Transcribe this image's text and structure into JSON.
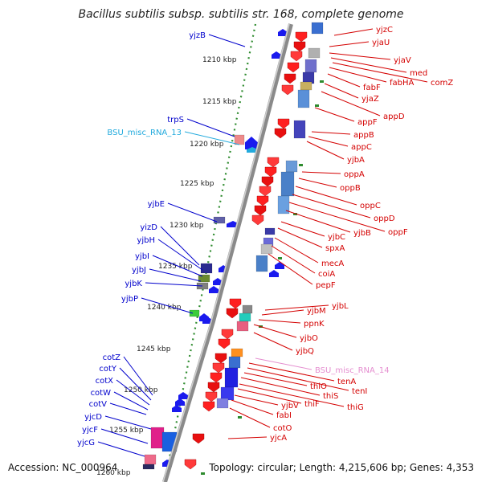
{
  "title": "Bacillus subtilis subsp. subtilis str. 168, complete genome",
  "footer": {
    "accession": "Accession: NC_000964",
    "topology": "Topology: circular; Length: 4,215,606 bp; Genes: 4,353"
  },
  "colors": {
    "backbone": "#8a8a8a",
    "ruler_dots": "#2e8b2e",
    "reverse_label": "#0000cc",
    "forward_label": "#d40000",
    "misc_rna_reverse": "#22aadd",
    "misc_rna_forward": "#e58fd0"
  },
  "ruler_ticks": [
    "1210 kbp",
    "1215 kbp",
    "1220 kbp",
    "1225 kbp",
    "1230 kbp",
    "1235 kbp",
    "1240 kbp",
    "1245 kbp",
    "1250 kbp",
    "1255 kbp",
    "1260 kbp"
  ],
  "reverse_strand_labels": [
    "yjzB",
    "trpS",
    "BSU_misc_RNA_13",
    "yjbE",
    "yizD",
    "yjbH",
    "yjbI",
    "yjbJ",
    "yjbK",
    "yjbP",
    "cotZ",
    "cotY",
    "cotX",
    "cotW",
    "cotV",
    "yjcD",
    "yjcF",
    "yjcG"
  ],
  "forward_strand_labels": [
    "yjzC",
    "yjaU",
    "yjaV",
    "med",
    "comZ",
    "fabHA",
    "fabF",
    "yjaZ",
    "appD",
    "appF",
    "appB",
    "appC",
    "yjbA",
    "oppA",
    "oppB",
    "oppC",
    "oppD",
    "oppF",
    "yjbB",
    "yjbC",
    "spxA",
    "mecA",
    "coiA",
    "pepF",
    "yjbL",
    "yjbM",
    "ppnK",
    "yjbO",
    "yjbQ",
    "BSU_misc_RNA_14",
    "tenA",
    "tenI",
    "thiO",
    "thiS",
    "thiG",
    "thiF",
    "yjbV",
    "fabI",
    "cotO",
    "yjcA"
  ]
}
